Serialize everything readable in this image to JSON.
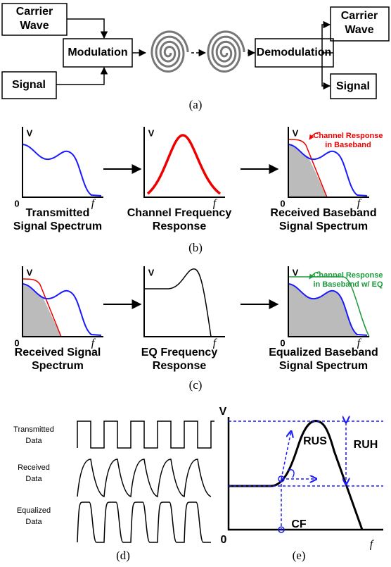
{
  "a": {
    "carrier_in": [
      "Carrier",
      "Wave"
    ],
    "modulation": "Modulation",
    "signal_in": "Signal",
    "demodulation": "Demodulation",
    "carrier_out": [
      "Carrier",
      "Wave"
    ],
    "signal_out": "Signal",
    "caption": "(a)"
  },
  "b": {
    "panels": [
      {
        "v": "V",
        "origin": "0",
        "f": "f",
        "caption": [
          "Transmitted",
          "Signal Spectrum"
        ]
      },
      {
        "v": "V",
        "f": "f",
        "caption": [
          "Channel Frequency",
          "Response"
        ]
      },
      {
        "v": "V",
        "origin": "0",
        "f": "f",
        "annotation": [
          "Channel Response",
          "in Baseband"
        ],
        "caption": [
          "Received Baseband",
          "Signal Spectrum"
        ]
      }
    ],
    "caption": "(b)"
  },
  "c": {
    "panels": [
      {
        "v": "V",
        "origin": "0",
        "f": "f",
        "caption": [
          "Received Signal",
          "Spectrum"
        ]
      },
      {
        "v": "V",
        "f": "f",
        "caption": [
          "EQ Frequency",
          "Response"
        ]
      },
      {
        "v": "V",
        "origin": "0",
        "f": "f",
        "annotation": [
          "Channel Response",
          "in Baseband w/ EQ"
        ],
        "caption": [
          "Equalized Baseband",
          "Signal Spectrum"
        ]
      }
    ],
    "caption": "(c)"
  },
  "d": {
    "labels": [
      [
        "Transmitted",
        "Data"
      ],
      [
        "Received",
        "Data"
      ],
      [
        "Equalized",
        "Data"
      ]
    ],
    "caption": "(d)"
  },
  "e": {
    "v": "V",
    "rus": "RUS",
    "ruh": "RUH",
    "cf": "CF",
    "origin": "0",
    "f": "f",
    "caption": "(e)"
  }
}
